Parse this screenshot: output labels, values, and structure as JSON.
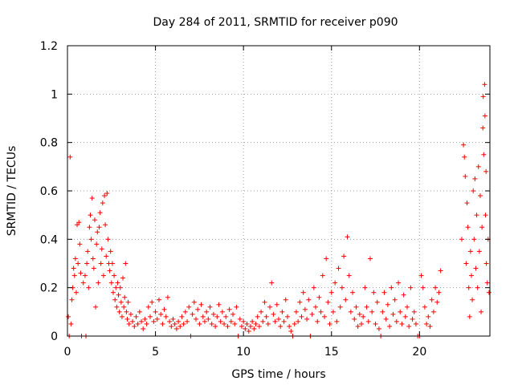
{
  "chart_data": {
    "type": "scatter",
    "title": "Day 284 of 2011, SRMTID for receiver p090",
    "xlabel": "GPS time / hours",
    "ylabel": "SRMTID / TECUs",
    "xlim": [
      0,
      24
    ],
    "ylim": [
      0,
      1.2
    ],
    "xticks": [
      0,
      5,
      10,
      15,
      20
    ],
    "xtick_labels": [
      "0",
      "5",
      "10",
      "15",
      "20"
    ],
    "yticks": [
      0,
      0.2,
      0.4,
      0.6,
      0.8,
      1.0,
      1.2
    ],
    "ytick_labels": [
      "0",
      "0.2",
      "0.4",
      "0.6",
      "0.8",
      "1",
      "1.2"
    ],
    "grid": true,
    "marker": "+",
    "series": [
      {
        "name": "SRMTID",
        "color": "#ff0000",
        "points": [
          [
            0.05,
            0.08
          ],
          [
            0.1,
            0.0
          ],
          [
            0.15,
            0.74
          ],
          [
            0.2,
            0.05
          ],
          [
            0.25,
            0.15
          ],
          [
            0.3,
            0.2
          ],
          [
            0.35,
            0.28
          ],
          [
            0.4,
            0.25
          ],
          [
            0.45,
            0.32
          ],
          [
            0.5,
            0.18
          ],
          [
            0.55,
            0.46
          ],
          [
            0.6,
            0.3
          ],
          [
            0.65,
            0.47
          ],
          [
            0.7,
            0.38
          ],
          [
            0.75,
            0.26
          ],
          [
            0.8,
            0.0
          ],
          [
            0.9,
            0.22
          ],
          [
            1.0,
            0.25
          ],
          [
            1.05,
            0.0
          ],
          [
            1.1,
            0.3
          ],
          [
            1.15,
            0.35
          ],
          [
            1.2,
            0.2
          ],
          [
            1.25,
            0.45
          ],
          [
            1.3,
            0.5
          ],
          [
            1.35,
            0.4
          ],
          [
            1.4,
            0.57
          ],
          [
            1.45,
            0.32
          ],
          [
            1.5,
            0.28
          ],
          [
            1.55,
            0.48
          ],
          [
            1.6,
            0.12
          ],
          [
            1.65,
            0.38
          ],
          [
            1.7,
            0.43
          ],
          [
            1.75,
            0.22
          ],
          [
            1.8,
            0.45
          ],
          [
            1.85,
            0.51
          ],
          [
            1.9,
            0.3
          ],
          [
            1.95,
            0.36
          ],
          [
            2.0,
            0.55
          ],
          [
            2.05,
            0.25
          ],
          [
            2.1,
            0.58
          ],
          [
            2.15,
            0.46
          ],
          [
            2.2,
            0.33
          ],
          [
            2.25,
            0.59
          ],
          [
            2.3,
            0.4
          ],
          [
            2.35,
            0.3
          ],
          [
            2.4,
            0.27
          ],
          [
            2.45,
            0.35
          ],
          [
            2.5,
            0.22
          ],
          [
            2.55,
            0.3
          ],
          [
            2.6,
            0.18
          ],
          [
            2.65,
            0.25
          ],
          [
            2.7,
            0.15
          ],
          [
            2.75,
            0.2
          ],
          [
            2.8,
            0.12
          ],
          [
            2.85,
            0.22
          ],
          [
            2.9,
            0.17
          ],
          [
            2.95,
            0.1
          ],
          [
            3.0,
            0.2
          ],
          [
            3.05,
            0.14
          ],
          [
            3.1,
            0.08
          ],
          [
            3.15,
            0.24
          ],
          [
            3.2,
            0.12
          ],
          [
            3.25,
            0.16
          ],
          [
            3.3,
            0.3
          ],
          [
            3.35,
            0.1
          ],
          [
            3.4,
            0.07
          ],
          [
            3.45,
            0.14
          ],
          [
            3.5,
            0.05
          ],
          [
            3.6,
            0.09
          ],
          [
            3.7,
            0.06
          ],
          [
            3.8,
            0.04
          ],
          [
            3.9,
            0.08
          ],
          [
            4.0,
            0.05
          ],
          [
            4.1,
            0.1
          ],
          [
            4.2,
            0.06
          ],
          [
            4.3,
            0.03
          ],
          [
            4.4,
            0.07
          ],
          [
            4.5,
            0.05
          ],
          [
            4.6,
            0.12
          ],
          [
            4.7,
            0.08
          ],
          [
            4.8,
            0.14
          ],
          [
            4.9,
            0.06
          ],
          [
            5.0,
            0.1
          ],
          [
            5.1,
            0.07
          ],
          [
            5.2,
            0.15
          ],
          [
            5.3,
            0.09
          ],
          [
            5.4,
            0.05
          ],
          [
            5.5,
            0.11
          ],
          [
            5.6,
            0.08
          ],
          [
            5.7,
            0.16
          ],
          [
            5.8,
            0.06
          ],
          [
            5.9,
            0.04
          ],
          [
            6.0,
            0.07
          ],
          [
            6.1,
            0.05
          ],
          [
            6.2,
            0.03
          ],
          [
            6.3,
            0.06
          ],
          [
            6.4,
            0.04
          ],
          [
            6.5,
            0.08
          ],
          [
            6.6,
            0.05
          ],
          [
            6.7,
            0.1
          ],
          [
            6.8,
            0.06
          ],
          [
            6.9,
            0.12
          ],
          [
            7.0,
            0.0
          ],
          [
            7.1,
            0.09
          ],
          [
            7.2,
            0.14
          ],
          [
            7.3,
            0.07
          ],
          [
            7.4,
            0.11
          ],
          [
            7.5,
            0.05
          ],
          [
            7.6,
            0.13
          ],
          [
            7.7,
            0.08
          ],
          [
            7.8,
            0.06
          ],
          [
            7.9,
            0.1
          ],
          [
            8.0,
            0.07
          ],
          [
            8.1,
            0.12
          ],
          [
            8.2,
            0.05
          ],
          [
            8.3,
            0.09
          ],
          [
            8.4,
            0.04
          ],
          [
            8.5,
            0.08
          ],
          [
            8.6,
            0.13
          ],
          [
            8.7,
            0.06
          ],
          [
            8.8,
            0.1
          ],
          [
            8.9,
            0.05
          ],
          [
            9.0,
            0.08
          ],
          [
            9.1,
            0.04
          ],
          [
            9.2,
            0.11
          ],
          [
            9.3,
            0.06
          ],
          [
            9.4,
            0.09
          ],
          [
            9.5,
            0.05
          ],
          [
            9.6,
            0.12
          ],
          [
            9.7,
            0.0
          ],
          [
            9.8,
            0.07
          ],
          [
            9.9,
            0.04
          ],
          [
            10.0,
            0.06
          ],
          [
            10.1,
            0.03
          ],
          [
            10.2,
            0.05
          ],
          [
            10.3,
            0.02
          ],
          [
            10.4,
            0.04
          ],
          [
            10.5,
            0.06
          ],
          [
            10.6,
            0.03
          ],
          [
            10.7,
            0.05
          ],
          [
            10.8,
            0.08
          ],
          [
            10.9,
            0.04
          ],
          [
            11.0,
            0.1
          ],
          [
            11.1,
            0.06
          ],
          [
            11.2,
            0.14
          ],
          [
            11.3,
            0.08
          ],
          [
            11.4,
            0.05
          ],
          [
            11.5,
            0.12
          ],
          [
            11.6,
            0.22
          ],
          [
            11.7,
            0.09
          ],
          [
            11.8,
            0.06
          ],
          [
            11.9,
            0.13
          ],
          [
            12.0,
            0.07
          ],
          [
            12.1,
            0.04
          ],
          [
            12.2,
            0.1
          ],
          [
            12.3,
            0.06
          ],
          [
            12.4,
            0.15
          ],
          [
            12.5,
            0.08
          ],
          [
            12.6,
            0.04
          ],
          [
            12.7,
            0.02
          ],
          [
            12.8,
            0.0
          ],
          [
            12.9,
            0.05
          ],
          [
            13.0,
            0.1
          ],
          [
            13.1,
            0.06
          ],
          [
            13.2,
            0.14
          ],
          [
            13.3,
            0.08
          ],
          [
            13.4,
            0.18
          ],
          [
            13.5,
            0.11
          ],
          [
            13.6,
            0.07
          ],
          [
            13.7,
            0.15
          ],
          [
            13.8,
            0.0
          ],
          [
            13.9,
            0.09
          ],
          [
            14.0,
            0.2
          ],
          [
            14.1,
            0.12
          ],
          [
            14.2,
            0.06
          ],
          [
            14.3,
            0.16
          ],
          [
            14.4,
            0.1
          ],
          [
            14.5,
            0.25
          ],
          [
            14.6,
            0.08
          ],
          [
            14.7,
            0.32
          ],
          [
            14.8,
            0.14
          ],
          [
            14.9,
            0.05
          ],
          [
            15.0,
            0.18
          ],
          [
            15.1,
            0.1
          ],
          [
            15.2,
            0.22
          ],
          [
            15.3,
            0.06
          ],
          [
            15.4,
            0.28
          ],
          [
            15.5,
            0.12
          ],
          [
            15.6,
            0.2
          ],
          [
            15.7,
            0.33
          ],
          [
            15.8,
            0.15
          ],
          [
            15.9,
            0.41
          ],
          [
            16.0,
            0.25
          ],
          [
            16.1,
            0.1
          ],
          [
            16.2,
            0.18
          ],
          [
            16.3,
            0.07
          ],
          [
            16.4,
            0.12
          ],
          [
            16.5,
            0.04
          ],
          [
            16.6,
            0.09
          ],
          [
            16.7,
            0.05
          ],
          [
            16.8,
            0.08
          ],
          [
            16.9,
            0.2
          ],
          [
            17.0,
            0.12
          ],
          [
            17.1,
            0.06
          ],
          [
            17.2,
            0.32
          ],
          [
            17.3,
            0.1
          ],
          [
            17.4,
            0.18
          ],
          [
            17.5,
            0.05
          ],
          [
            17.6,
            0.14
          ],
          [
            17.7,
            0.03
          ],
          [
            17.8,
            0.0
          ],
          [
            17.9,
            0.1
          ],
          [
            18.0,
            0.18
          ],
          [
            18.1,
            0.07
          ],
          [
            18.2,
            0.13
          ],
          [
            18.3,
            0.04
          ],
          [
            18.4,
            0.2
          ],
          [
            18.5,
            0.09
          ],
          [
            18.6,
            0.15
          ],
          [
            18.7,
            0.06
          ],
          [
            18.8,
            0.22
          ],
          [
            18.9,
            0.1
          ],
          [
            19.0,
            0.05
          ],
          [
            19.1,
            0.17
          ],
          [
            19.2,
            0.08
          ],
          [
            19.3,
            0.12
          ],
          [
            19.4,
            0.04
          ],
          [
            19.5,
            0.2
          ],
          [
            19.6,
            0.07
          ],
          [
            19.7,
            0.1
          ],
          [
            19.8,
            0.05
          ],
          [
            19.9,
            0.0
          ],
          [
            20.0,
            0.0
          ],
          [
            20.1,
            0.25
          ],
          [
            20.2,
            0.2
          ],
          [
            20.3,
            0.12
          ],
          [
            20.4,
            0.05
          ],
          [
            20.5,
            0.08
          ],
          [
            20.6,
            0.04
          ],
          [
            20.7,
            0.15
          ],
          [
            20.8,
            0.1
          ],
          [
            20.9,
            0.2
          ],
          [
            21.0,
            0.14
          ],
          [
            21.1,
            0.18
          ],
          [
            21.2,
            0.27
          ],
          [
            22.4,
            0.4
          ],
          [
            22.5,
            0.79
          ],
          [
            22.55,
            0.74
          ],
          [
            22.6,
            0.66
          ],
          [
            22.65,
            0.3
          ],
          [
            22.7,
            0.55
          ],
          [
            22.75,
            0.45
          ],
          [
            22.8,
            0.2
          ],
          [
            22.85,
            0.08
          ],
          [
            22.9,
            0.35
          ],
          [
            22.95,
            0.25
          ],
          [
            23.0,
            0.15
          ],
          [
            23.05,
            0.6
          ],
          [
            23.1,
            0.4
          ],
          [
            23.15,
            0.65
          ],
          [
            23.2,
            0.28
          ],
          [
            23.25,
            0.5
          ],
          [
            23.3,
            0.2
          ],
          [
            23.35,
            0.7
          ],
          [
            23.4,
            0.35
          ],
          [
            23.45,
            0.58
          ],
          [
            23.5,
            0.1
          ],
          [
            23.55,
            0.45
          ],
          [
            23.6,
            0.86
          ],
          [
            23.62,
            0.99
          ],
          [
            23.65,
            0.75
          ],
          [
            23.7,
            1.04
          ],
          [
            23.72,
            0.91
          ],
          [
            23.75,
            0.5
          ],
          [
            23.78,
            0.68
          ],
          [
            23.8,
            0.3
          ],
          [
            23.85,
            0.22
          ],
          [
            23.9,
            0.4
          ],
          [
            23.95,
            0.18
          ]
        ]
      }
    ]
  }
}
